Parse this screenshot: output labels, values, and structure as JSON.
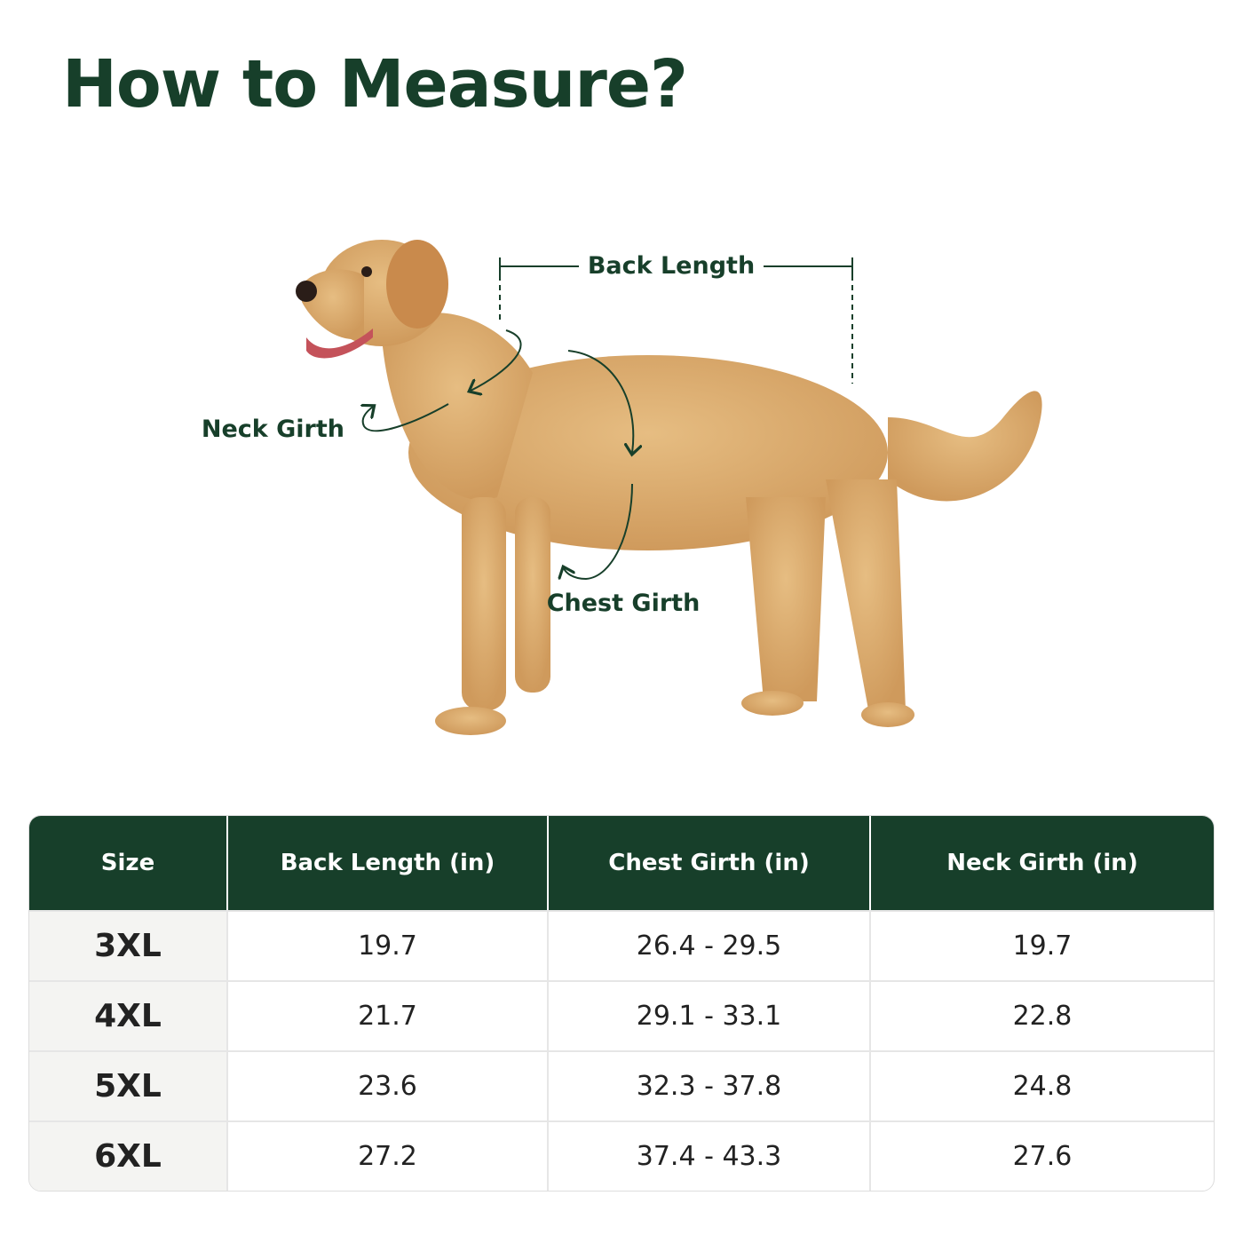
{
  "header": {
    "title": "How to Measure?"
  },
  "diagram": {
    "back_length": "Back Length",
    "neck_girth": "Neck Girth",
    "chest_girth": "Chest Girth"
  },
  "table": {
    "columns": [
      "Size",
      "Back Length (in)",
      "Chest Girth (in)",
      "Neck Girth (in)"
    ],
    "rows": [
      [
        "3XL",
        "19.7",
        "26.4 - 29.5",
        "19.7"
      ],
      [
        "4XL",
        "21.7",
        "29.1 - 33.1",
        "22.8"
      ],
      [
        "5XL",
        "23.6",
        "32.3 - 37.8",
        "24.8"
      ],
      [
        "6XL",
        "27.2",
        "37.4 - 43.3",
        "27.6"
      ]
    ]
  }
}
